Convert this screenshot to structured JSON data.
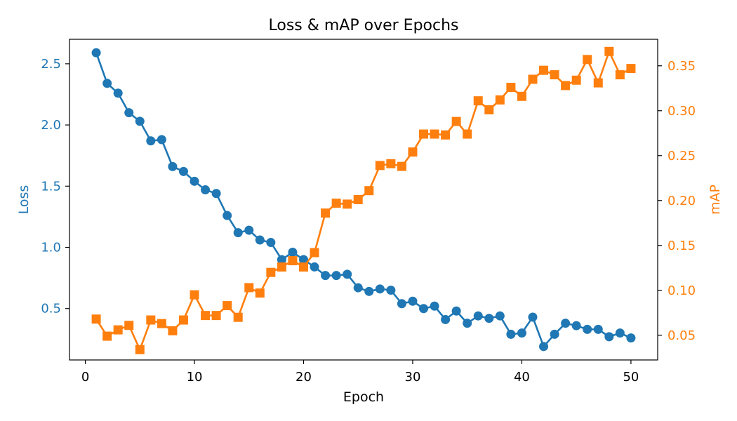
{
  "chart_data": {
    "type": "line",
    "title": "Loss & mAP over Epochs",
    "xlabel": "Epoch",
    "xlim": [
      -1.45,
      52.45
    ],
    "x_ticks": [
      0,
      10,
      20,
      30,
      40,
      50
    ],
    "x": [
      1,
      2,
      3,
      4,
      5,
      6,
      7,
      8,
      9,
      10,
      11,
      12,
      13,
      14,
      15,
      16,
      17,
      18,
      19,
      20,
      21,
      22,
      23,
      24,
      25,
      26,
      27,
      28,
      29,
      30,
      31,
      32,
      33,
      34,
      35,
      36,
      37,
      38,
      39,
      40,
      41,
      42,
      43,
      44,
      45,
      46,
      47,
      48,
      49,
      50
    ],
    "y_left": {
      "label": "Loss",
      "ylim": [
        0.08,
        2.7
      ],
      "ticks": [
        0.5,
        1.0,
        1.5,
        2.0,
        2.5
      ],
      "tick_labels": [
        "0.5",
        "1.0",
        "1.5",
        "2.0",
        "2.5"
      ],
      "color": "#1f77b4"
    },
    "y_right": {
      "label": "mAP",
      "ylim": [
        0.0225,
        0.3795
      ],
      "ticks": [
        0.05,
        0.1,
        0.15,
        0.2,
        0.25,
        0.3,
        0.35
      ],
      "tick_labels": [
        "0.05",
        "0.10",
        "0.15",
        "0.20",
        "0.25",
        "0.30",
        "0.35"
      ],
      "color": "#ff7f0e"
    },
    "series": [
      {
        "name": "Loss",
        "axis": "left",
        "marker": "circle",
        "color": "#1f77b4",
        "values": [
          2.59,
          2.34,
          2.26,
          2.1,
          2.03,
          1.87,
          1.88,
          1.66,
          1.62,
          1.54,
          1.47,
          1.44,
          1.26,
          1.12,
          1.14,
          1.06,
          1.04,
          0.9,
          0.96,
          0.9,
          0.84,
          0.77,
          0.77,
          0.78,
          0.67,
          0.64,
          0.66,
          0.65,
          0.54,
          0.56,
          0.5,
          0.52,
          0.41,
          0.48,
          0.38,
          0.44,
          0.42,
          0.44,
          0.29,
          0.3,
          0.43,
          0.19,
          0.29,
          0.38,
          0.36,
          0.33,
          0.33,
          0.27,
          0.3,
          0.26
        ]
      },
      {
        "name": "mAP",
        "axis": "right",
        "marker": "square",
        "color": "#ff7f0e",
        "values": [
          0.068,
          0.049,
          0.056,
          0.061,
          0.034,
          0.067,
          0.063,
          0.055,
          0.067,
          0.095,
          0.072,
          0.072,
          0.083,
          0.07,
          0.103,
          0.097,
          0.12,
          0.126,
          0.133,
          0.126,
          0.142,
          0.186,
          0.197,
          0.196,
          0.201,
          0.211,
          0.239,
          0.241,
          0.238,
          0.254,
          0.274,
          0.274,
          0.273,
          0.288,
          0.274,
          0.311,
          0.301,
          0.312,
          0.326,
          0.316,
          0.335,
          0.345,
          0.34,
          0.328,
          0.334,
          0.357,
          0.331,
          0.366,
          0.34,
          0.347
        ]
      }
    ],
    "grid": false,
    "legend": "none"
  }
}
